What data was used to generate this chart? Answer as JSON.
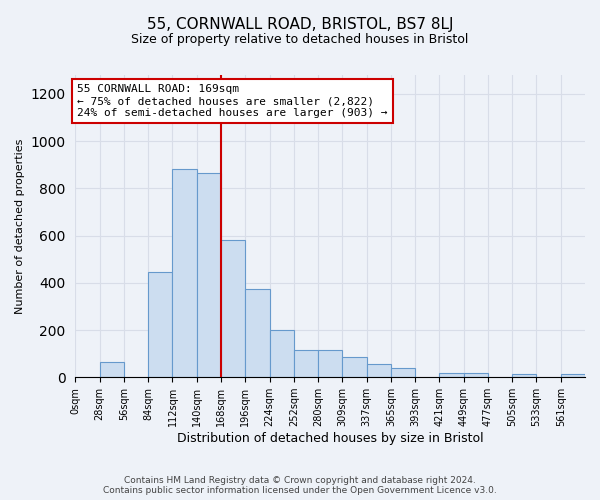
{
  "title_line1": "55, CORNWALL ROAD, BRISTOL, BS7 8LJ",
  "title_line2": "Size of property relative to detached houses in Bristol",
  "xlabel": "Distribution of detached houses by size in Bristol",
  "ylabel": "Number of detached properties",
  "bar_labels": [
    "0sqm",
    "28sqm",
    "56sqm",
    "84sqm",
    "112sqm",
    "140sqm",
    "168sqm",
    "196sqm",
    "224sqm",
    "252sqm",
    "280sqm",
    "309sqm",
    "337sqm",
    "365sqm",
    "393sqm",
    "421sqm",
    "449sqm",
    "477sqm",
    "505sqm",
    "533sqm",
    "561sqm"
  ],
  "bar_values": [
    0,
    65,
    0,
    445,
    880,
    865,
    580,
    375,
    200,
    115,
    115,
    85,
    55,
    40,
    0,
    20,
    20,
    0,
    15,
    0,
    15
  ],
  "bar_color": "#ccddf0",
  "bar_edge_color": "#6699cc",
  "property_line_x": 168,
  "bin_width": 28,
  "ylim": [
    0,
    1280
  ],
  "yticks": [
    0,
    200,
    400,
    600,
    800,
    1000,
    1200
  ],
  "annotation_text": "55 CORNWALL ROAD: 169sqm\n← 75% of detached houses are smaller (2,822)\n24% of semi-detached houses are larger (903) →",
  "annotation_box_color": "#ffffff",
  "annotation_box_edge": "#cc0000",
  "vline_color": "#cc0000",
  "footer_line1": "Contains HM Land Registry data © Crown copyright and database right 2024.",
  "footer_line2": "Contains public sector information licensed under the Open Government Licence v3.0.",
  "background_color": "#eef2f8",
  "grid_color": "#d8dde8",
  "plot_bg_color": "#eef2f8"
}
